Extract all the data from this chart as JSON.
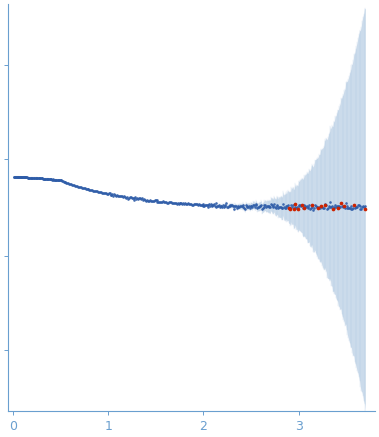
{
  "title": "",
  "xlabel": "",
  "ylabel": "",
  "xlim": [
    -0.05,
    3.8
  ],
  "bg_color": "#ffffff",
  "dot_color_blue": "#2e5ca8",
  "dot_color_red": "#cc2200",
  "error_band_color": "#b8cce4",
  "error_line_color": "#8ab0d4",
  "tick_color": "#6a9fcf",
  "axis_color": "#6a9fcf",
  "x_ticks": [
    0,
    1,
    2,
    3
  ],
  "seed": 12345
}
